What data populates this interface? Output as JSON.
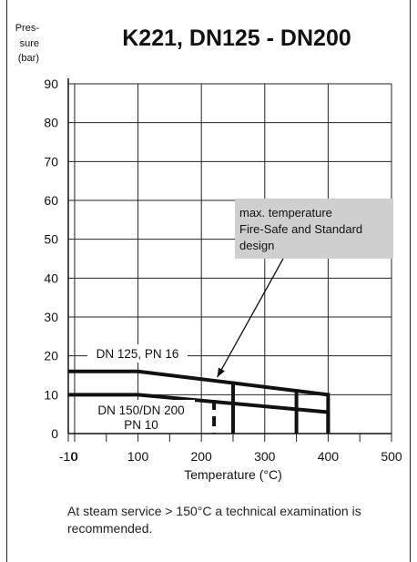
{
  "chart_data": {
    "type": "line",
    "title": "K221, DN125 - DN200",
    "ylabel_lines": [
      "Pres-",
      "sure",
      "(bar)"
    ],
    "xlabel": "Temperature (°C)",
    "xlim": [
      -10,
      500
    ],
    "ylim": [
      0,
      90
    ],
    "x_ticks": [
      -10,
      0,
      100,
      200,
      300,
      400,
      500
    ],
    "y_ticks": [
      0,
      10,
      20,
      30,
      40,
      50,
      60,
      70,
      80,
      90
    ],
    "grid": true,
    "series": [
      {
        "name": "DN 125, PN 16",
        "label_lines": [
          "DN 125, PN 16"
        ],
        "x": [
          -10,
          100,
          400
        ],
        "y": [
          16,
          16,
          10
        ],
        "drops": [
          {
            "x": 250,
            "style": "solid"
          },
          {
            "x": 350,
            "style": "solid"
          }
        ]
      },
      {
        "name": "DN 150/DN 200 PN 10",
        "label_lines": [
          "DN 150/DN 200",
          "PN 10"
        ],
        "x": [
          -10,
          100,
          400
        ],
        "y": [
          10,
          10,
          5.5
        ],
        "drops": [
          {
            "x": 220,
            "style": "dashed"
          }
        ]
      }
    ],
    "annotation": {
      "lines": [
        "max. temperature",
        "Fire-Safe and Standard",
        "design"
      ],
      "arrow_to": [
        225,
        14.5
      ]
    }
  },
  "footnote": "At steam service > 150°C a technical examination is recommended."
}
